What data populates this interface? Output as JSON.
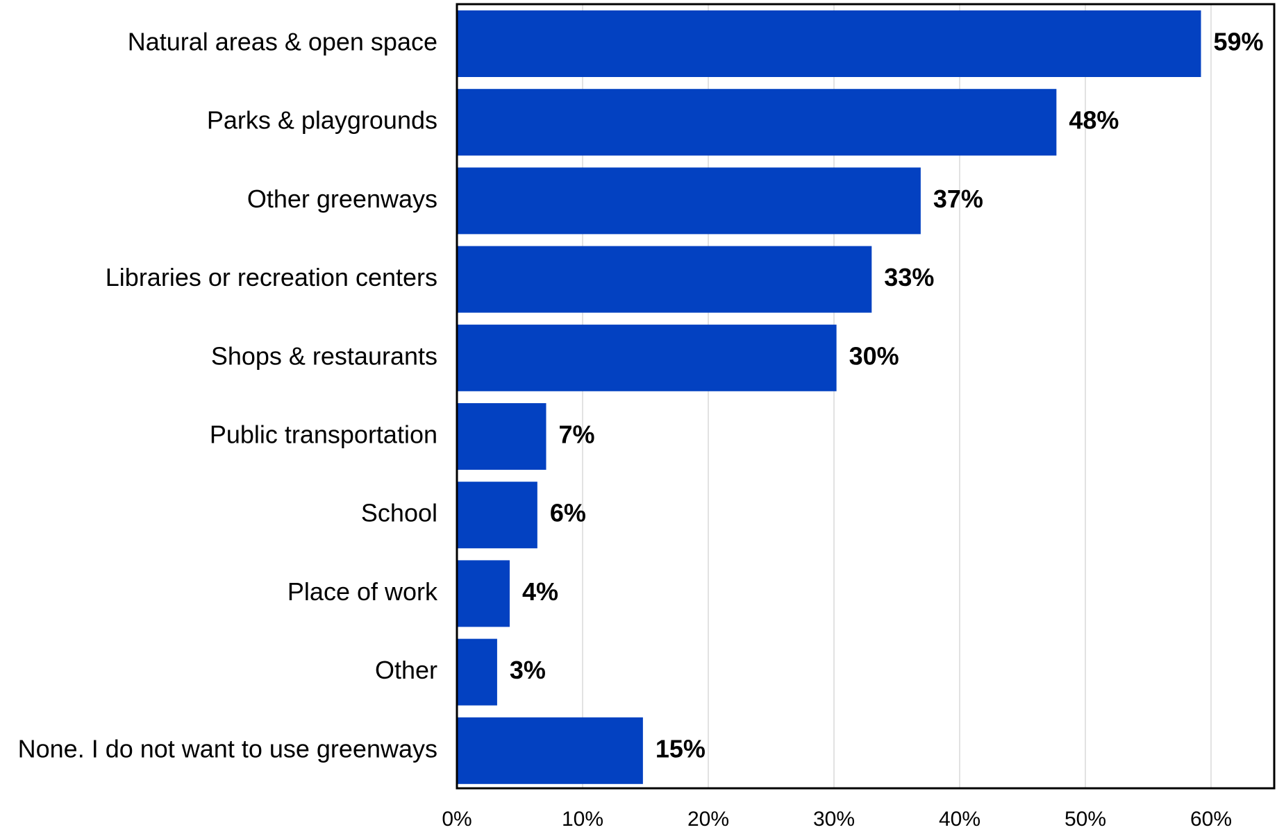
{
  "chart_data": {
    "type": "bar",
    "orientation": "horizontal",
    "categories": [
      "Natural areas & open space",
      "Parks & playgrounds",
      "Other greenways",
      "Libraries or recreation centers",
      "Shops & restaurants",
      "Public transportation",
      "School",
      "Place of work",
      "Other",
      "None. I do not want to use greenways"
    ],
    "values": [
      59.2,
      47.7,
      36.9,
      33.0,
      30.2,
      7.1,
      6.4,
      4.2,
      3.2,
      14.8
    ],
    "value_labels": [
      "59%",
      "48%",
      "37%",
      "33%",
      "30%",
      "7%",
      "6%",
      "4%",
      "3%",
      "15%"
    ],
    "title": "",
    "xlabel": "",
    "ylabel": "",
    "xlim": [
      0,
      65
    ],
    "xticks": [
      0,
      10,
      20,
      30,
      40,
      50,
      60
    ],
    "xtick_labels": [
      "0%",
      "10%",
      "20%",
      "30%",
      "40%",
      "50%",
      "60%"
    ],
    "grid": "vertical gridlines",
    "legend": "none",
    "colors": {
      "bar": "#0341C1",
      "grid": "#D9D9D9",
      "frame": "#000000"
    }
  }
}
